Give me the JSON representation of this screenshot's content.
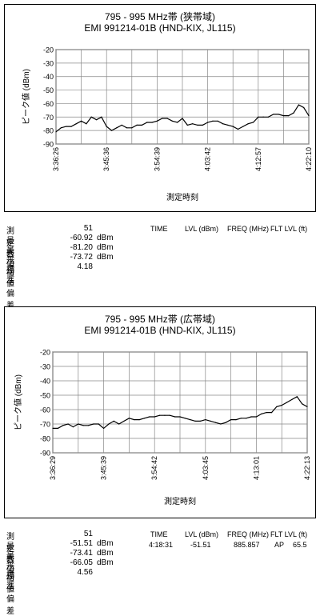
{
  "chart_data": [
    {
      "type": "line",
      "title": "795 - 995 MHz帯 (狭帯域)",
      "subtitle": "EMI 991214-01B (HND-KIX, JL115)",
      "xlabel": "測定時刻",
      "ylabel": "ピーク値 (dBm)",
      "ylim": [
        -90,
        -20
      ],
      "yticks": [
        "-20",
        "-30",
        "-40",
        "-50",
        "-60",
        "-70",
        "-80",
        "-90"
      ],
      "xticks": [
        "3:36:26",
        "3:45:36",
        "3:54:39",
        "4:03:42",
        "4:12:57",
        "4:22:10"
      ],
      "grid": true,
      "x": [
        1,
        2,
        3,
        4,
        5,
        6,
        7,
        8,
        9,
        10,
        11,
        12,
        13,
        14,
        15,
        16,
        17,
        18,
        19,
        20,
        21,
        22,
        23,
        24,
        25,
        26,
        27,
        28,
        29,
        30,
        31,
        32,
        33,
        34,
        35,
        36,
        37,
        38,
        39,
        40,
        41,
        42,
        43,
        44,
        45,
        46,
        47,
        48,
        49,
        50,
        51
      ],
      "values": [
        -81,
        -78,
        -77,
        -77,
        -75,
        -73,
        -75,
        -70,
        -72,
        -70,
        -77,
        -80,
        -78,
        -76,
        -78,
        -78,
        -76,
        -76,
        -74,
        -74,
        -73,
        -71,
        -71,
        -73,
        -74,
        -71,
        -76,
        -75,
        -76,
        -76,
        -74,
        -73,
        -73,
        -75,
        -76,
        -77,
        -79,
        -77,
        -75,
        -74,
        -70,
        -70,
        -70,
        -68,
        -68,
        -69,
        -69,
        -67,
        -61,
        -63,
        -69
      ]
    },
    {
      "type": "line",
      "title": "795 - 995 MHz帯 (広帯域)",
      "subtitle": "EMI 991214-01B (HND-KIX, JL115)",
      "xlabel": "測定時刻",
      "ylabel": "ピーク値 (dBm)",
      "ylim": [
        -90,
        -20
      ],
      "yticks": [
        "-20",
        "-30",
        "-40",
        "-50",
        "-60",
        "-70",
        "-80",
        "-90"
      ],
      "xticks": [
        "3:36:29",
        "3:45:39",
        "3:54:42",
        "4:03:45",
        "4:13:01",
        "4:22:13"
      ],
      "grid": true,
      "x": [
        1,
        2,
        3,
        4,
        5,
        6,
        7,
        8,
        9,
        10,
        11,
        12,
        13,
        14,
        15,
        16,
        17,
        18,
        19,
        20,
        21,
        22,
        23,
        24,
        25,
        26,
        27,
        28,
        29,
        30,
        31,
        32,
        33,
        34,
        35,
        36,
        37,
        38,
        39,
        40,
        41,
        42,
        43,
        44,
        45,
        46,
        47,
        48,
        49,
        50,
        51
      ],
      "values": [
        -73,
        -73,
        -71,
        -70,
        -72,
        -70,
        -71,
        -71,
        -70,
        -70,
        -73,
        -70,
        -68,
        -70,
        -68,
        -66,
        -67,
        -67,
        -66,
        -65,
        -65,
        -64,
        -64,
        -64,
        -65,
        -65,
        -66,
        -67,
        -68,
        -68,
        -67,
        -68,
        -69,
        -70,
        -69,
        -67,
        -67,
        -66,
        -66,
        -65,
        -65,
        -63,
        -62,
        -62,
        -58,
        -57,
        -55,
        -53,
        -51,
        -56,
        -58
      ]
    }
  ],
  "stats1": {
    "rows": [
      {
        "label": "測定数",
        "value": "51",
        "unit": ""
      },
      {
        "label": "最大値",
        "value": "-60.92",
        "unit": "dBm"
      },
      {
        "label": "最小値",
        "value": "-81.20",
        "unit": "dBm"
      },
      {
        "label": "平均値",
        "value": "-73.72",
        "unit": "dBm"
      },
      {
        "label": "標準偏差",
        "value": "4.18",
        "unit": ""
      }
    ],
    "header": {
      "time": "TIME",
      "lvl": "LVL (dBm)",
      "freq": "FREQ (MHz)",
      "flt": "FLT LVL (ft)"
    }
  },
  "stats2": {
    "rows": [
      {
        "label": "測定数",
        "value": "51",
        "unit": ""
      },
      {
        "label": "最大値",
        "value": "-51.51",
        "unit": "dBm"
      },
      {
        "label": "最小値",
        "value": "-73.41",
        "unit": "dBm"
      },
      {
        "label": "平均値",
        "value": "-66.05",
        "unit": "dBm"
      },
      {
        "label": "標準偏差",
        "value": "4.56",
        "unit": ""
      }
    ],
    "header": {
      "time": "TIME",
      "lvl": "LVL (dBm)",
      "freq": "FREQ (MHz)",
      "flt": "FLT LVL (ft)"
    },
    "max_row": {
      "time": "4:18:31",
      "lvl": "-51.51",
      "freq": "885.857",
      "flt": "AP",
      "fltval": "65.5"
    }
  }
}
